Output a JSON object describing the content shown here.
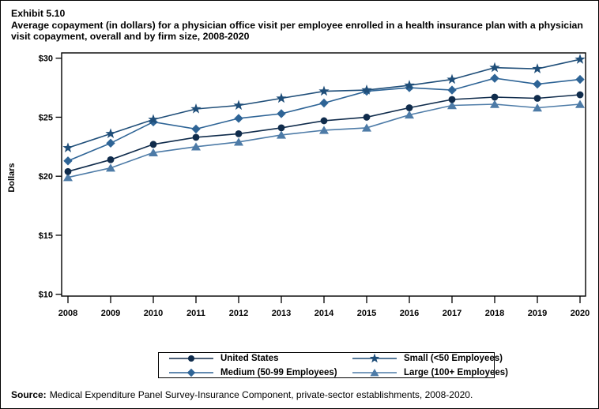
{
  "exhibit": {
    "number": "Exhibit 5.10",
    "title": "Average copayment (in dollars) for a physician office visit per employee enrolled in a health insurance plan with a physician visit copayment, overall and by firm size, 2008-2020"
  },
  "chart_data": {
    "type": "line",
    "title": "Average copayment (in dollars) for a physician office visit per employee enrolled in a health insurance plan with a physician visit copayment, overall and by firm size, 2008-2020",
    "xlabel": "",
    "ylabel": "Dollars",
    "x": [
      2008,
      2009,
      2010,
      2011,
      2012,
      2013,
      2014,
      2015,
      2016,
      2017,
      2018,
      2019,
      2020
    ],
    "ylim": [
      10,
      30
    ],
    "yticks": [
      10,
      15,
      20,
      25,
      30
    ],
    "ytick_labels": [
      "$10",
      "$15",
      "$20",
      "$25",
      "$30"
    ],
    "grid": false,
    "legend_position": "bottom",
    "axis_color": "#000000",
    "series": [
      {
        "name": "United States",
        "marker": "circle",
        "color": "#102c4c",
        "values": [
          20.4,
          21.4,
          22.7,
          23.3,
          23.6,
          24.1,
          24.7,
          25.0,
          25.8,
          26.5,
          26.7,
          26.6,
          26.9
        ]
      },
      {
        "name": "Small (<50 Employees)",
        "marker": "star",
        "color": "#1f4e79",
        "values": [
          22.4,
          23.6,
          24.8,
          25.7,
          26.0,
          26.6,
          27.2,
          27.3,
          27.7,
          28.2,
          29.2,
          29.1,
          29.9
        ]
      },
      {
        "name": "Medium (50-99 Employees)",
        "marker": "diamond",
        "color": "#2e6496",
        "values": [
          21.3,
          22.8,
          24.6,
          24.0,
          24.9,
          25.3,
          26.2,
          27.2,
          27.5,
          27.3,
          28.3,
          27.8,
          28.2
        ]
      },
      {
        "name": "Large (100+ Employees)",
        "marker": "triangle",
        "color": "#4d7ba7",
        "values": [
          19.9,
          20.7,
          22.0,
          22.5,
          22.9,
          23.5,
          23.9,
          24.1,
          25.2,
          26.0,
          26.1,
          25.8,
          26.1
        ]
      }
    ],
    "legend_order": [
      0,
      1,
      2,
      3
    ],
    "draw_order": [
      2,
      3,
      0,
      1
    ]
  },
  "source": {
    "label": "Source:",
    "text": "Medical Expenditure Panel Survey-Insurance Component, private-sector establishments, 2008-2020."
  }
}
